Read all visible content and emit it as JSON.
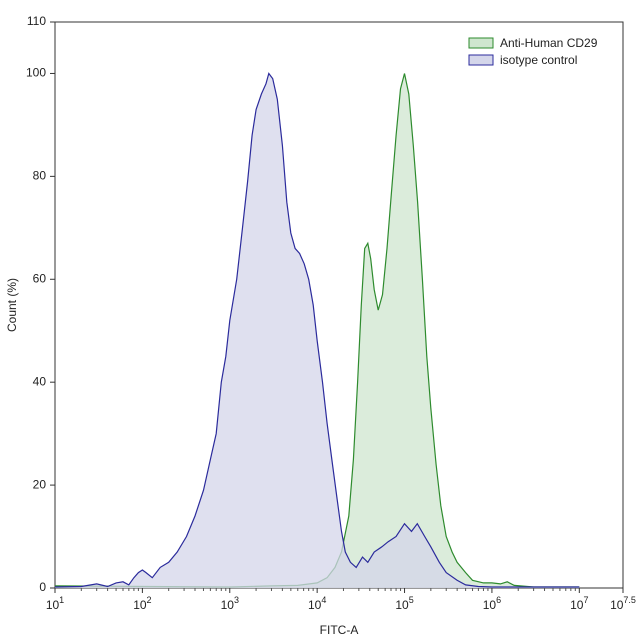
{
  "chart_data": {
    "type": "area",
    "xlabel": "FITC-A",
    "ylabel": "Count (%)",
    "xscale": "log",
    "xlim": [
      10,
      31622776.6
    ],
    "ylim": [
      0,
      110
    ],
    "x_ticks": [
      {
        "base": "10",
        "exp": "1",
        "value": 10
      },
      {
        "base": "10",
        "exp": "2",
        "value": 100
      },
      {
        "base": "10",
        "exp": "3",
        "value": 1000
      },
      {
        "base": "10",
        "exp": "4",
        "value": 10000
      },
      {
        "base": "10",
        "exp": "5",
        "value": 100000
      },
      {
        "base": "10",
        "exp": "6",
        "value": 1000000
      },
      {
        "base": "10",
        "exp": "7",
        "value": 10000000
      },
      {
        "base": "10",
        "exp": "7.5",
        "value": 31622776.6
      }
    ],
    "y_ticks": [
      "0",
      "20",
      "40",
      "60",
      "80",
      "100",
      "110"
    ],
    "legend_position": "top-right",
    "series": [
      {
        "name": "Anti-Human CD29",
        "color": "#2e8b2e",
        "fill": "#cfe6cf",
        "points": [
          [
            10,
            0.4
          ],
          [
            1000,
            0.2
          ],
          [
            3000,
            0.4
          ],
          [
            6000,
            0.5
          ],
          [
            10000,
            1.0
          ],
          [
            13000,
            2.0
          ],
          [
            16000,
            4.0
          ],
          [
            19000,
            7.0
          ],
          [
            23000,
            14.0
          ],
          [
            26000,
            25.0
          ],
          [
            29000,
            40.0
          ],
          [
            32000,
            55.0
          ],
          [
            35000,
            66.0
          ],
          [
            38000,
            67.0
          ],
          [
            41000,
            64.0
          ],
          [
            45000,
            58.0
          ],
          [
            50000,
            54.0
          ],
          [
            56000,
            57.0
          ],
          [
            63000,
            66.0
          ],
          [
            71000,
            77.0
          ],
          [
            80000,
            88.0
          ],
          [
            90000,
            97.0
          ],
          [
            100000,
            100.0
          ],
          [
            112000,
            96.0
          ],
          [
            126000,
            86.0
          ],
          [
            141000,
            75.0
          ],
          [
            160000,
            60.0
          ],
          [
            180000,
            45.0
          ],
          [
            200000,
            35.0
          ],
          [
            230000,
            24.0
          ],
          [
            260000,
            16.0
          ],
          [
            300000,
            10.0
          ],
          [
            350000,
            7.0
          ],
          [
            400000,
            5.0
          ],
          [
            500000,
            3.0
          ],
          [
            600000,
            1.5
          ],
          [
            800000,
            1.0
          ],
          [
            1000000,
            1.0
          ],
          [
            1250000,
            0.8
          ],
          [
            1500000,
            1.2
          ],
          [
            1800000,
            0.5
          ],
          [
            3000000,
            0.2
          ],
          [
            10000000,
            0.2
          ]
        ]
      },
      {
        "name": "isotype control",
        "color": "#2b2b9c",
        "fill": "#d4d6ea",
        "points": [
          [
            10,
            0.2
          ],
          [
            20,
            0.3
          ],
          [
            30,
            0.8
          ],
          [
            40,
            0.3
          ],
          [
            50,
            1.0
          ],
          [
            60,
            1.2
          ],
          [
            70,
            0.6
          ],
          [
            80,
            2.0
          ],
          [
            90,
            3.0
          ],
          [
            100,
            3.5
          ],
          [
            110,
            3.0
          ],
          [
            130,
            2.0
          ],
          [
            160,
            4.0
          ],
          [
            200,
            5.0
          ],
          [
            250,
            7.0
          ],
          [
            320,
            10.0
          ],
          [
            400,
            14.0
          ],
          [
            500,
            19.0
          ],
          [
            600,
            25.0
          ],
          [
            700,
            30.0
          ],
          [
            800,
            40.0
          ],
          [
            900,
            45.0
          ],
          [
            1000,
            52.0
          ],
          [
            1200,
            60.0
          ],
          [
            1400,
            70.0
          ],
          [
            1600,
            79.0
          ],
          [
            1800,
            88.0
          ],
          [
            2000,
            93.0
          ],
          [
            2300,
            96.0
          ],
          [
            2600,
            98.0
          ],
          [
            2800,
            100.0
          ],
          [
            3100,
            99.0
          ],
          [
            3500,
            95.0
          ],
          [
            4000,
            86.0
          ],
          [
            4500,
            75.0
          ],
          [
            5000,
            69.0
          ],
          [
            5600,
            66.0
          ],
          [
            6300,
            65.0
          ],
          [
            7100,
            63.0
          ],
          [
            8000,
            60.0
          ],
          [
            9000,
            55.0
          ],
          [
            10000,
            48.0
          ],
          [
            11500,
            40.0
          ],
          [
            13000,
            32.0
          ],
          [
            15000,
            24.0
          ],
          [
            17000,
            17.0
          ],
          [
            19000,
            11.0
          ],
          [
            21000,
            7.0
          ],
          [
            24000,
            5.0
          ],
          [
            28000,
            4.0
          ],
          [
            33000,
            6.0
          ],
          [
            38000,
            5.0
          ],
          [
            45000,
            7.0
          ],
          [
            55000,
            8.0
          ],
          [
            65000,
            9.0
          ],
          [
            80000,
            10.0
          ],
          [
            100000,
            12.5
          ],
          [
            120000,
            11.0
          ],
          [
            140000,
            12.5
          ],
          [
            170000,
            10.0
          ],
          [
            200000,
            8.0
          ],
          [
            250000,
            5.0
          ],
          [
            300000,
            3.0
          ],
          [
            400000,
            1.5
          ],
          [
            500000,
            0.6
          ],
          [
            700000,
            0.3
          ],
          [
            1000000,
            0.2
          ],
          [
            3000000,
            0.2
          ],
          [
            10000000,
            0.2
          ]
        ]
      }
    ]
  }
}
